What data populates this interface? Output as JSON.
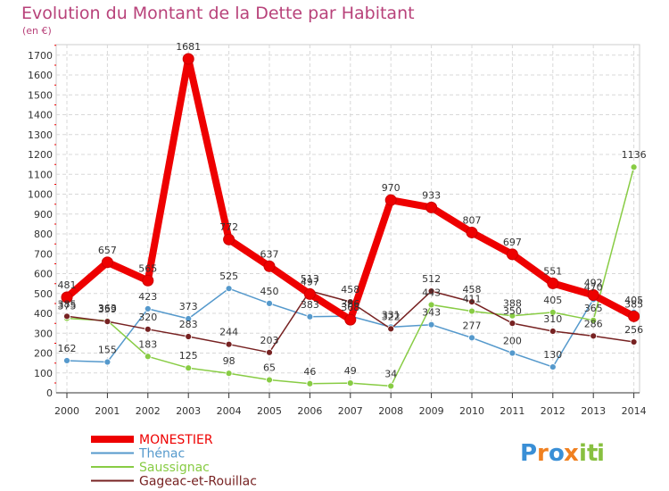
{
  "chart_data": {
    "type": "line",
    "title": "Evolution du Montant de la Dette par Habitant",
    "subtitle": "(en €)",
    "x": [
      "2000",
      "2001",
      "2002",
      "2003",
      "2004",
      "2005",
      "2006",
      "2007",
      "2008",
      "2009",
      "2010",
      "2011",
      "2012",
      "2013",
      "2014"
    ],
    "ylim": [
      0,
      1700
    ],
    "yticks": [
      0,
      100,
      200,
      300,
      400,
      500,
      600,
      700,
      800,
      900,
      1000,
      1100,
      1200,
      1300,
      1400,
      1500,
      1600,
      1700
    ],
    "grid": true,
    "legend_position": "bottom-left",
    "series": [
      {
        "name": "MONESTIER",
        "color": "#ee0000",
        "values": [
          481,
          657,
          565,
          1681,
          772,
          637,
          497,
          368,
          970,
          933,
          807,
          697,
          551,
          492,
          385
        ]
      },
      {
        "name": "Thénac",
        "color": "#5599cc",
        "values": [
          162,
          155,
          423,
          373,
          525,
          450,
          383,
          386,
          331,
          343,
          277,
          200,
          130,
          470,
          405
        ]
      },
      {
        "name": "Saussignac",
        "color": "#88cc44",
        "values": [
          375,
          363,
          183,
          125,
          98,
          65,
          46,
          49,
          34,
          443,
          411,
          388,
          405,
          365,
          1136
        ]
      },
      {
        "name": "Gageac-et-Rouillac",
        "color": "#772222",
        "values": [
          385,
          359,
          320,
          283,
          244,
          203,
          513,
          458,
          322,
          512,
          458,
          350,
          310,
          286,
          256
        ]
      }
    ]
  },
  "logo": {
    "letters": [
      "P",
      "r",
      "o",
      "x",
      "i",
      "t",
      "i"
    ],
    "colors": [
      "#3a8fd6",
      "#f08020",
      "#3a8fd6",
      "#f08020",
      "#88c040",
      "#88c040",
      "#88c040"
    ]
  }
}
